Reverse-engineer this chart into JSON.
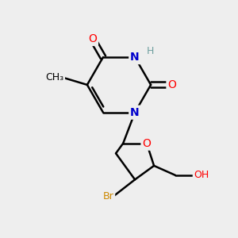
{
  "bg_color": "#eeeeee",
  "bond_color": "#000000",
  "bond_width": 1.8,
  "colors": {
    "N": "#0000cc",
    "O": "#ff0000",
    "Br": "#cc8800",
    "C": "#000000",
    "H": "#7f9f9f"
  }
}
